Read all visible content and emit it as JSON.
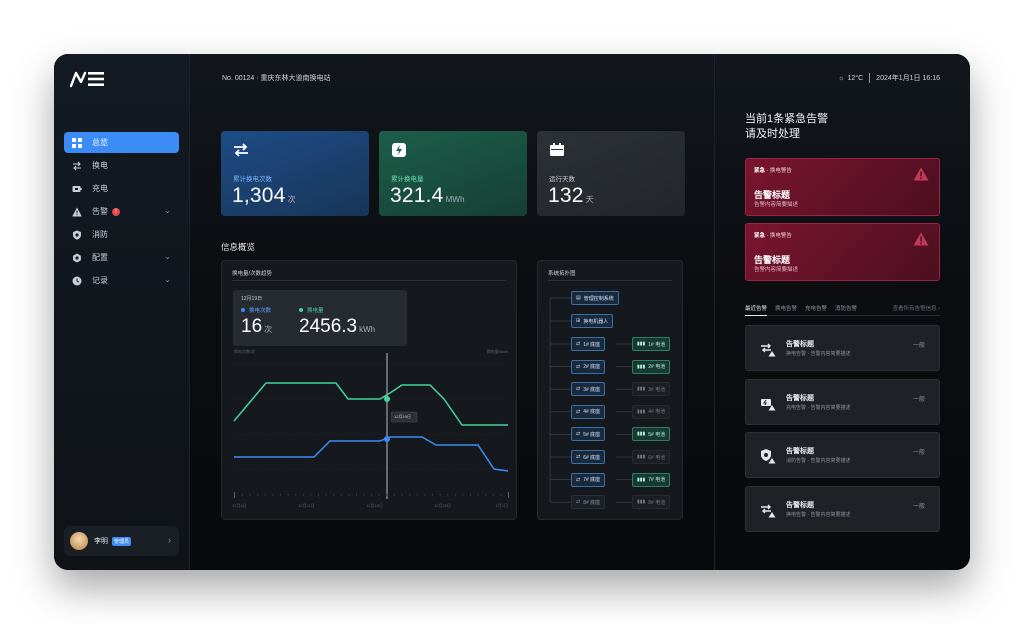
{
  "sidebar": {
    "logo_alt": "logo",
    "items": [
      {
        "label": "总览",
        "icon": "dashboard-icon"
      },
      {
        "label": "换电",
        "icon": "swap-icon"
      },
      {
        "label": "充电",
        "icon": "battery-icon"
      },
      {
        "label": "告警",
        "icon": "warning-icon",
        "badge": "!"
      },
      {
        "label": "消防",
        "icon": "shield-icon"
      },
      {
        "label": "配置",
        "icon": "gear-icon"
      },
      {
        "label": "记录",
        "icon": "clock-icon"
      }
    ],
    "user": {
      "name": "李明",
      "role": "管理员"
    }
  },
  "header": {
    "station": "No. 00124 · 重庆东林大道南换电站",
    "temperature": "12°C",
    "datetime": "2024年1月1日  16:16"
  },
  "stats": [
    {
      "label": "累计换电次数",
      "value": "1,304",
      "unit": "次",
      "icon": "swap-icon",
      "theme": "blue"
    },
    {
      "label": "累计换电量",
      "value": "321.4",
      "unit": "MWh",
      "icon": "lightning-icon",
      "theme": "green"
    },
    {
      "label": "运行天数",
      "value": "132",
      "unit": "天",
      "icon": "calendar-icon",
      "theme": "gray"
    }
  ],
  "overview": {
    "title": "信息概览",
    "trend": {
      "title": "换电量/次数趋势",
      "tooltip": {
        "date": "12月19日",
        "count_label": "换电次数",
        "count_value": "16",
        "count_unit": "次",
        "energy_label": "换电量",
        "energy_value": "2456.3",
        "energy_unit": "kWh"
      },
      "left_axis_title": "换电次数/次",
      "right_axis_title": "换电量/kWh",
      "x_ticks": [
        "12月4日",
        "12月11日",
        "12月18日",
        "12月25日",
        "1月1日"
      ],
      "hover_label": "12月19日"
    },
    "topology": {
      "title": "系统拓扑图",
      "control": "管理控制系统",
      "swap": "换电机器人",
      "rows": [
        {
          "pile": "1# 底座",
          "bat": "1# 电池",
          "on": true,
          "bat_on": true
        },
        {
          "pile": "2# 底座",
          "bat": "2# 电池",
          "on": true,
          "bat_on": true
        },
        {
          "pile": "3# 底座",
          "bat": "3# 电池",
          "on": true,
          "bat_on": false
        },
        {
          "pile": "4# 底座",
          "bat": "4# 电池",
          "on": true,
          "bat_on": false
        },
        {
          "pile": "5# 底座",
          "bat": "5# 电池",
          "on": true,
          "bat_on": true
        },
        {
          "pile": "6# 底座",
          "bat": "6# 电池",
          "on": true,
          "bat_on": false
        },
        {
          "pile": "7# 底座",
          "bat": "7# 电池",
          "on": true,
          "bat_on": true
        },
        {
          "pile": "8# 底座",
          "bat": "8# 电池",
          "on": false,
          "bat_on": false
        }
      ]
    }
  },
  "chart_data": {
    "type": "line",
    "x": [
      "12月4日",
      "12月11日",
      "12月18日",
      "12月19日",
      "12月25日",
      "1月1日"
    ],
    "series": [
      {
        "name": "换电量",
        "color": "#45d39a"
      },
      {
        "name": "换电次数",
        "color": "#3b8cf5"
      }
    ],
    "highlight": {
      "x": "12月19日",
      "换电次数": 16,
      "换电量": 2456.3
    }
  },
  "alerts": {
    "headline_1": "当前1条紧急告警",
    "headline_2": "请及时处理",
    "cards": [
      {
        "level": "紧急",
        "type": "换电警告",
        "title": "告警标题",
        "desc": "告警内容简要描述"
      },
      {
        "level": "紧急",
        "type": "换电警告",
        "title": "告警标题",
        "desc": "告警内容简要描述"
      }
    ],
    "tabs": [
      "最近告警",
      "换电告警",
      "充电告警",
      "消防告警"
    ],
    "more": "查看所有告警信息 ›",
    "records": [
      {
        "icon": "swap-warning-icon",
        "title": "告警标题",
        "desc": "换电告警 · 告警内容简要描述",
        "level": "一般"
      },
      {
        "icon": "battery-warning-icon",
        "title": "告警标题",
        "desc": "充电告警 · 告警内容简要描述",
        "level": "一般"
      },
      {
        "icon": "shield-warning-icon",
        "title": "告警标题",
        "desc": "消防告警 · 告警内容简要描述",
        "level": "一般"
      },
      {
        "icon": "swap-warning-icon",
        "title": "告警标题",
        "desc": "换电告警 · 告警内容简要描述",
        "level": "一般"
      }
    ]
  }
}
